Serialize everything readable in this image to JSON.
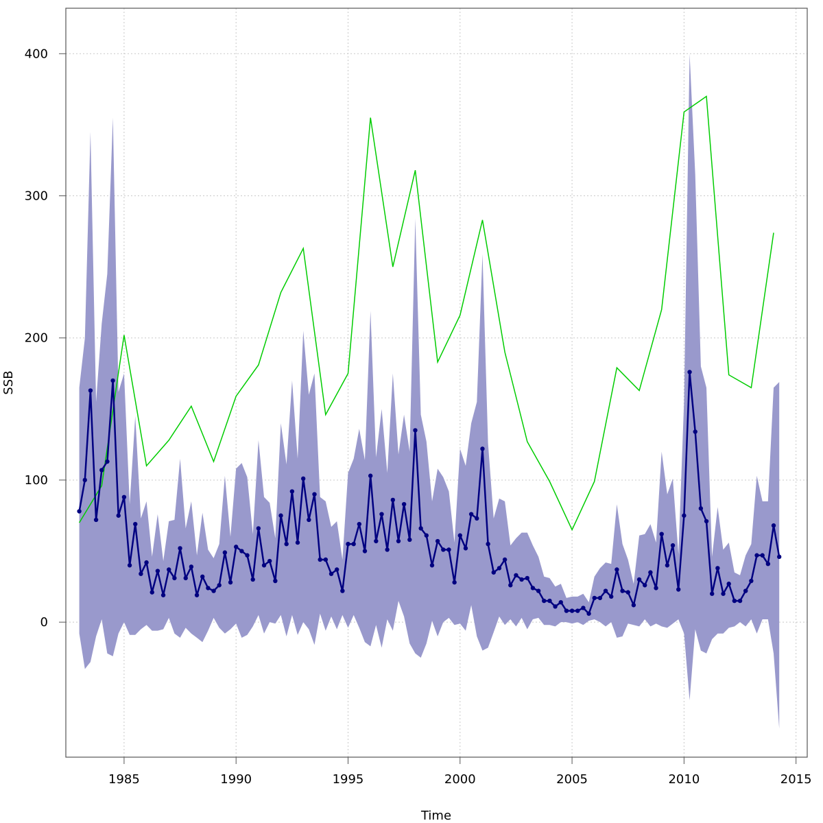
{
  "chart_data": {
    "type": "line",
    "xlabel": "Time",
    "ylabel": "SSB",
    "xlim": [
      1982.4,
      2015.5
    ],
    "ylim": [
      -95,
      432
    ],
    "x_ticks": [
      1985,
      1990,
      1995,
      2000,
      2005,
      2010,
      2015
    ],
    "y_ticks": [
      0,
      100,
      200,
      300,
      400
    ],
    "grid": true,
    "colors": {
      "estimate": "#000080",
      "band": "#9999cc",
      "annual": "#00cc00",
      "grid": "#c8c8c8",
      "frame": "#555555"
    },
    "series": [
      {
        "style": "line-with-points",
        "x": [
          1983.0,
          1983.25,
          1983.5,
          1983.75,
          1984.0,
          1984.25,
          1984.5,
          1984.75,
          1985.0,
          1985.25,
          1985.5,
          1985.75,
          1986.0,
          1986.25,
          1986.5,
          1986.75,
          1987.0,
          1987.25,
          1987.5,
          1987.75,
          1988.0,
          1988.25,
          1988.5,
          1988.75,
          1989.0,
          1989.25,
          1989.5,
          1989.75,
          1990.0,
          1990.25,
          1990.5,
          1990.75,
          1991.0,
          1991.25,
          1991.5,
          1991.75,
          1992.0,
          1992.25,
          1992.5,
          1992.75,
          1993.0,
          1993.25,
          1993.5,
          1993.75,
          1994.0,
          1994.25,
          1994.5,
          1994.75,
          1995.0,
          1995.25,
          1995.5,
          1995.75,
          1996.0,
          1996.25,
          1996.5,
          1996.75,
          1997.0,
          1997.25,
          1997.5,
          1997.75,
          1998.0,
          1998.25,
          1998.5,
          1998.75,
          1999.0,
          1999.25,
          1999.5,
          1999.75,
          2000.0,
          2000.25,
          2000.5,
          2000.75,
          2001.0,
          2001.25,
          2001.5,
          2001.75,
          2002.0,
          2002.25,
          2002.5,
          2002.75,
          2003.0,
          2003.25,
          2003.5,
          2003.75,
          2004.0,
          2004.25,
          2004.5,
          2004.75,
          2005.0,
          2005.25,
          2005.5,
          2005.75,
          2006.0,
          2006.25,
          2006.5,
          2006.75,
          2007.0,
          2007.25,
          2007.5,
          2007.75,
          2008.0,
          2008.25,
          2008.5,
          2008.75,
          2009.0,
          2009.25,
          2009.5,
          2009.75,
          2010.0,
          2010.25,
          2010.5,
          2010.75,
          2011.0,
          2011.25,
          2011.5,
          2011.75,
          2012.0,
          2012.25,
          2012.5,
          2012.75,
          2013.0,
          2013.25,
          2013.5,
          2013.75,
          2014.0,
          2014.25
        ],
        "y": [
          78,
          100,
          163,
          72,
          107,
          113,
          170,
          75,
          88,
          40,
          69,
          34,
          42,
          21,
          36,
          19,
          37,
          31,
          52,
          31,
          39,
          19,
          32,
          24,
          22,
          26,
          49,
          28,
          53,
          50,
          47,
          30,
          66,
          40,
          43,
          29,
          75,
          55,
          92,
          56,
          101,
          72,
          90,
          44,
          44,
          34,
          37,
          22,
          55,
          55,
          69,
          50,
          103,
          57,
          76,
          51,
          86,
          57,
          83,
          58,
          135,
          66,
          61,
          40,
          57,
          51,
          51,
          28,
          61,
          52,
          76,
          73,
          122,
          55,
          35,
          38,
          44,
          26,
          33,
          30,
          31,
          24,
          22,
          15,
          15,
          11,
          14,
          8,
          8,
          8,
          10,
          6,
          17,
          17,
          22,
          18,
          37,
          22,
          21,
          12,
          30,
          26,
          35,
          24,
          62,
          40,
          54,
          23,
          75,
          176,
          134,
          80,
          71,
          20,
          38,
          20,
          27,
          15,
          15,
          22,
          29,
          47,
          47,
          41,
          68,
          46
        ],
        "lower": [
          -8,
          -33,
          -28,
          -10,
          2,
          -22,
          -24,
          -8,
          0,
          -9,
          -9,
          -5,
          -2,
          -6,
          -6,
          -5,
          3,
          -8,
          -11,
          -4,
          -8,
          -11,
          -14,
          -6,
          3,
          -4,
          -8,
          -5,
          -1,
          -11,
          -9,
          -3,
          5,
          -8,
          0,
          -1,
          5,
          -10,
          5,
          -9,
          0,
          -5,
          -16,
          6,
          -6,
          4,
          -5,
          5,
          -4,
          5,
          -4,
          -14,
          -17,
          -2,
          -18,
          2,
          -6,
          15,
          4,
          -15,
          -22,
          -25,
          -15,
          1,
          -10,
          0,
          3,
          -2,
          -1,
          -6,
          12,
          -10,
          -20,
          -18,
          -7,
          4,
          -2,
          2,
          -3,
          3,
          -5,
          2,
          3,
          -2,
          -2,
          -3,
          0,
          0,
          -1,
          0,
          -2,
          1,
          2,
          0,
          -3,
          0,
          -11,
          -10,
          -1,
          -2,
          -3,
          2,
          -3,
          -1,
          -3,
          -4,
          -1,
          2,
          -8,
          -55,
          -5,
          -20,
          -22,
          -12,
          -8,
          -8,
          -4,
          -3,
          0,
          -3,
          2,
          -8,
          2,
          2,
          -22,
          -75
        ],
        "upper": [
          165,
          200,
          345,
          155,
          210,
          245,
          355,
          162,
          175,
          83,
          145,
          73,
          85,
          46,
          76,
          43,
          71,
          72,
          115,
          66,
          85,
          47,
          77,
          51,
          45,
          55,
          103,
          60,
          108,
          112,
          102,
          62,
          128,
          88,
          84,
          59,
          140,
          111,
          170,
          115,
          205,
          160,
          175,
          88,
          85,
          67,
          71,
          44,
          105,
          115,
          136,
          114,
          219,
          116,
          150,
          105,
          175,
          118,
          146,
          120,
          284,
          146,
          127,
          85,
          108,
          102,
          92,
          56,
          122,
          110,
          140,
          155,
          259,
          126,
          73,
          87,
          85,
          54,
          59,
          63,
          63,
          54,
          46,
          32,
          31,
          25,
          27,
          17,
          18,
          18,
          20,
          14,
          32,
          38,
          42,
          41,
          83,
          55,
          44,
          27,
          61,
          62,
          69,
          56,
          120,
          90,
          101,
          48,
          155,
          400,
          315,
          180,
          165,
          46,
          81,
          51,
          56,
          35,
          33,
          47,
          55,
          103,
          85,
          85,
          165,
          169
        ]
      },
      {
        "style": "line",
        "x": [
          1983,
          1984,
          1985,
          1986,
          1987,
          1988,
          1989,
          1990,
          1991,
          1992,
          1993,
          1994,
          1995,
          1996,
          1997,
          1998,
          1999,
          2000,
          2001,
          2002,
          2003,
          2004,
          2005,
          2006,
          2007,
          2008,
          2009,
          2010,
          2011,
          2012,
          2013,
          2014
        ],
        "y": [
          70,
          96,
          202,
          110,
          128,
          152,
          113,
          159,
          181,
          232,
          263,
          146,
          175,
          355,
          250,
          318,
          183,
          216,
          283,
          190,
          127,
          99,
          65,
          99,
          179,
          163,
          220,
          359,
          370,
          174,
          165,
          274
        ]
      }
    ]
  }
}
